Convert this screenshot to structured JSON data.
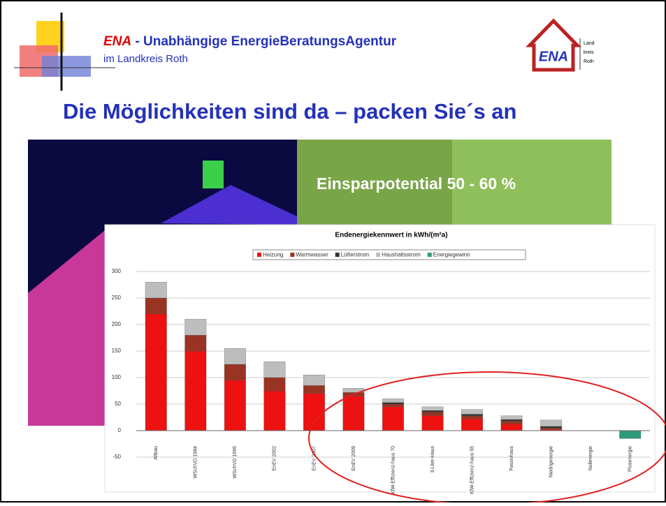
{
  "header": {
    "brand": "ENA",
    "title": " - Unabhängige EnergieBeratungsAgentur",
    "subtitle": "im Landkreis Roth",
    "logo": "ENA",
    "logo_side": [
      "Land",
      "kreis",
      "Roth"
    ]
  },
  "slide_title": "Die Möglichkeiten sind da – packen Sie´s an",
  "callout": "Einsparpotential 50 - 60 %",
  "chart_data": {
    "type": "stacked-bar",
    "title": "Endenergiekennwert in kWh/(m²a)",
    "categories": [
      "Altbau",
      "WSchVO 1984",
      "WSchVO 1995",
      "EnEV 2002",
      "EnEV 2007",
      "EnEV 2009",
      "KfW-Effizienz-haus 70",
      "3-Liter-Haus",
      "KfW-Effizienz-haus 55",
      "Passivhaus",
      "Niedrigenergie",
      "Nullenergie",
      "Plusenergie"
    ],
    "series": [
      {
        "name": "Heizung",
        "color": "#ee1111",
        "values": [
          220,
          150,
          95,
          75,
          70,
          65,
          45,
          28,
          22,
          12,
          2,
          0,
          0
        ]
      },
      {
        "name": "Warmwasser",
        "color": "#993322",
        "values": [
          30,
          30,
          30,
          25,
          15,
          7,
          5,
          7,
          6,
          6,
          3,
          0,
          0
        ]
      },
      {
        "name": "Lüfterstrom",
        "color": "#333333",
        "values": [
          0,
          0,
          0,
          0,
          0,
          0,
          3,
          3,
          3,
          3,
          3,
          0,
          0
        ]
      },
      {
        "name": "Haushaltsstrom",
        "color": "#bdbdbd",
        "values": [
          30,
          30,
          30,
          30,
          20,
          8,
          7,
          7,
          9,
          7,
          12,
          0,
          0
        ]
      },
      {
        "name": "Energiegewinn",
        "color": "#2e9a7a",
        "values": [
          0,
          0,
          0,
          0,
          0,
          0,
          0,
          0,
          0,
          0,
          0,
          0,
          -15
        ]
      }
    ],
    "ylim": [
      -50,
      300
    ],
    "yticks": [
      -50,
      0,
      50,
      100,
      150,
      200,
      250,
      300
    ],
    "grid": true
  }
}
